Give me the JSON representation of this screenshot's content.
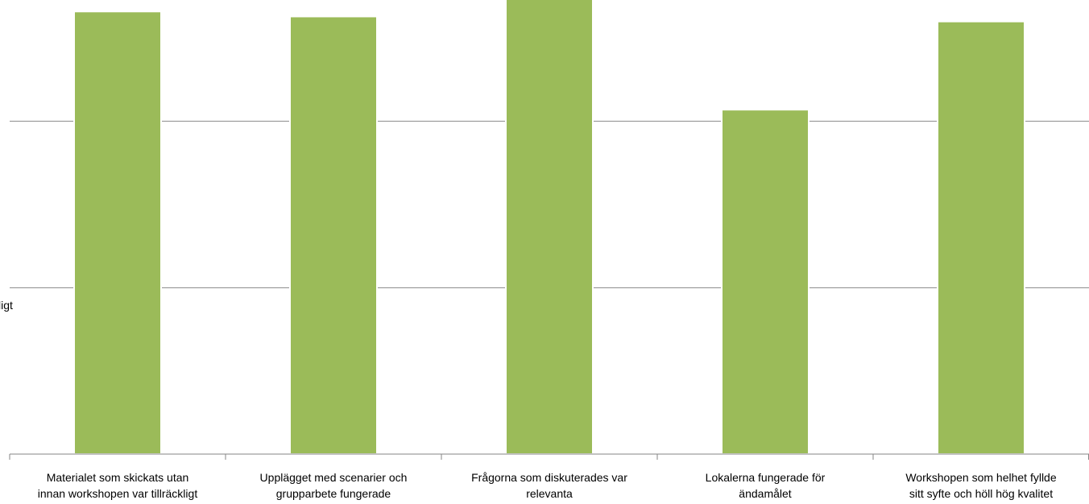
{
  "chart_data": {
    "type": "bar",
    "categories": [
      [
        "Materialet som skickats utan",
        "innan workshopen var tillräckligt"
      ],
      [
        "Upplägget med scenarier och",
        "grupparbete fungerade"
      ],
      [
        "Frågorna som diskuterades var",
        "relevanta"
      ],
      [
        "Lokalerna fungerade för",
        "ändamålet"
      ],
      [
        "Workshopen som helhet fyllde",
        "sitt syfte och höll hög kvalitet"
      ]
    ],
    "values": [
      2.66,
      2.63,
      2.75,
      2.07,
      2.6
    ],
    "ylim": [
      0,
      3
    ],
    "grid": true,
    "partial_left_label": "ligt",
    "colors": {
      "bar": "#9bbb59",
      "bar_edge": "#ffffff",
      "grid": "#868686",
      "axis": "#868686"
    }
  }
}
